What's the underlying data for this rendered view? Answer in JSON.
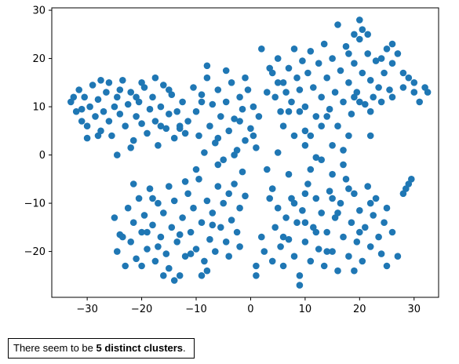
{
  "chart_data": {
    "type": "scatter",
    "title": "",
    "xlabel": "",
    "ylabel": "",
    "xlim": [
      -36.5,
      34.5
    ],
    "ylim": [
      -29.5,
      30.5
    ],
    "xticks": [
      -30,
      -20,
      -10,
      0,
      10,
      20,
      30
    ],
    "yticks": [
      -20,
      -10,
      0,
      10,
      20,
      30
    ],
    "grid": false,
    "legend": "none",
    "marker_color": "#1f77b4",
    "clusters_shown": 5,
    "points": [
      [
        -33,
        11
      ],
      [
        -32,
        9
      ],
      [
        -31.5,
        13.5
      ],
      [
        -31,
        7
      ],
      [
        -30.5,
        12
      ],
      [
        -30,
        6
      ],
      [
        -29.5,
        10
      ],
      [
        -29,
        14.5
      ],
      [
        -28.5,
        8
      ],
      [
        -28,
        11.5
      ],
      [
        -27.5,
        5
      ],
      [
        -27,
        9
      ],
      [
        -26.5,
        13
      ],
      [
        -26,
        7
      ],
      [
        -25.5,
        4
      ],
      [
        -25,
        10
      ],
      [
        -24.5,
        12
      ],
      [
        -24,
        8.5
      ],
      [
        -23.5,
        15.5
      ],
      [
        -23,
        6
      ],
      [
        -22.5,
        10.5
      ],
      [
        -22,
        13
      ],
      [
        -21.5,
        3
      ],
      [
        -21,
        8
      ],
      [
        -20.5,
        11
      ],
      [
        -20,
        6.5
      ],
      [
        -19.5,
        14
      ],
      [
        -19,
        4.5
      ],
      [
        -18.5,
        9.5
      ],
      [
        -18,
        12
      ],
      [
        -17.5,
        7
      ],
      [
        -17,
        2
      ],
      [
        -16.5,
        10
      ],
      [
        -16,
        14.5
      ],
      [
        -15.5,
        5.5
      ],
      [
        -15,
        8.5
      ],
      [
        -14.5,
        12.5
      ],
      [
        -14,
        3.5
      ],
      [
        -13.5,
        9
      ],
      [
        -13,
        6
      ],
      [
        -12.5,
        11
      ],
      [
        -12,
        4.5
      ],
      [
        -30,
        3.5
      ],
      [
        -28,
        4
      ],
      [
        -32.5,
        12
      ],
      [
        -26,
        15
      ],
      [
        -24.5,
        0
      ],
      [
        -22,
        1.5
      ],
      [
        -20,
        15
      ],
      [
        -17.5,
        16
      ],
      [
        -15,
        13.5
      ],
      [
        -13,
        5.5
      ],
      [
        -11.5,
        7
      ],
      [
        -31,
        9.5
      ],
      [
        -27.5,
        15.5
      ],
      [
        -21,
        12
      ],
      [
        -16.5,
        6
      ],
      [
        -24,
        13.5
      ],
      [
        -10.5,
        14
      ],
      [
        -10,
        9
      ],
      [
        -9.5,
        4
      ],
      [
        -9,
        12.5
      ],
      [
        -8.5,
        0.5
      ],
      [
        -8,
        16
      ],
      [
        -7.5,
        6
      ],
      [
        -7,
        10.5
      ],
      [
        -6.5,
        2.5
      ],
      [
        -6,
        13.5
      ],
      [
        -5.5,
        8
      ],
      [
        -5,
        -1
      ],
      [
        -4.5,
        11
      ],
      [
        -4,
        5
      ],
      [
        -3.5,
        15
      ],
      [
        -3,
        7.5
      ],
      [
        -2.5,
        1
      ],
      [
        -2,
        12
      ],
      [
        -1.5,
        9.5
      ],
      [
        -1,
        3
      ],
      [
        -0.5,
        13.5
      ],
      [
        0,
        5.5
      ],
      [
        0.5,
        10
      ],
      [
        1,
        1.5
      ],
      [
        1.5,
        8
      ],
      [
        2,
        22
      ],
      [
        -8,
        18.5
      ],
      [
        -6,
        3.5
      ],
      [
        -3,
        0
      ],
      [
        -1,
        16
      ],
      [
        0.5,
        4
      ],
      [
        -9,
        11
      ],
      [
        -4.5,
        17.5
      ],
      [
        -2,
        7
      ],
      [
        -25,
        -13
      ],
      [
        -24.5,
        -20
      ],
      [
        -24,
        -16.5
      ],
      [
        -23,
        -23
      ],
      [
        -22.5,
        -11
      ],
      [
        -22,
        -18
      ],
      [
        -21.5,
        -14
      ],
      [
        -21,
        -21.5
      ],
      [
        -20.5,
        -9
      ],
      [
        -20,
        -16
      ],
      [
        -19.5,
        -12.5
      ],
      [
        -19,
        -19.5
      ],
      [
        -18.5,
        -7
      ],
      [
        -18,
        -14.5
      ],
      [
        -17.5,
        -22
      ],
      [
        -17,
        -10
      ],
      [
        -16.5,
        -17
      ],
      [
        -16,
        -12
      ],
      [
        -15.5,
        -20.5
      ],
      [
        -15,
        -6.5
      ],
      [
        -14.5,
        -15
      ],
      [
        -14,
        -9.5
      ],
      [
        -13.5,
        -18
      ],
      [
        -13,
        -25
      ],
      [
        -12.5,
        -13
      ],
      [
        -12,
        -21
      ],
      [
        -11.5,
        -8
      ],
      [
        -11,
        -16
      ],
      [
        -10.5,
        -11
      ],
      [
        -10,
        -19.5
      ],
      [
        -9.5,
        -5
      ],
      [
        -9,
        -14
      ],
      [
        -8.5,
        -22
      ],
      [
        -8,
        -9.5
      ],
      [
        -7.5,
        -17.5
      ],
      [
        -7,
        -12
      ],
      [
        -6.5,
        -20
      ],
      [
        -6,
        -6.5
      ],
      [
        -5.5,
        -15
      ],
      [
        -5,
        -10
      ],
      [
        -4.5,
        -18
      ],
      [
        -4,
        -8
      ],
      [
        -3.5,
        -13.5
      ],
      [
        -3,
        -6
      ],
      [
        -2.5,
        -16
      ],
      [
        -2,
        -11
      ],
      [
        -1.5,
        -3.5
      ],
      [
        -1,
        -8.5
      ],
      [
        -23.5,
        -17
      ],
      [
        -20,
        -23
      ],
      [
        -17,
        -19
      ],
      [
        -14,
        -26
      ],
      [
        -12,
        -5.5
      ],
      [
        -10,
        -3
      ],
      [
        -8,
        -24
      ],
      [
        -6,
        -2
      ],
      [
        -18,
        -9
      ],
      [
        -15,
        -23.5
      ],
      [
        -11,
        -20.5
      ],
      [
        -19,
        -16
      ],
      [
        -13,
        -16.5
      ],
      [
        -7,
        -14.5
      ],
      [
        -16,
        -25
      ],
      [
        -9,
        -25
      ],
      [
        -21.5,
        -6
      ],
      [
        -4,
        -21
      ],
      [
        -2,
        -19
      ],
      [
        4,
        -7
      ],
      [
        4.5,
        -15
      ],
      [
        5,
        -11
      ],
      [
        5.5,
        -19
      ],
      [
        6,
        -23
      ],
      [
        6.5,
        -13
      ],
      [
        7,
        -17.5
      ],
      [
        7.5,
        -9
      ],
      [
        8,
        -21
      ],
      [
        8.5,
        -14
      ],
      [
        9,
        -25
      ],
      [
        9.5,
        -11.5
      ],
      [
        10,
        -18
      ],
      [
        10.5,
        -6
      ],
      [
        11,
        -22
      ],
      [
        11.5,
        -15
      ],
      [
        12,
        -9
      ],
      [
        12.5,
        -19.5
      ],
      [
        13,
        -12
      ],
      [
        13.5,
        -23
      ],
      [
        14,
        -16
      ],
      [
        14.5,
        -7.5
      ],
      [
        15,
        -20
      ],
      [
        15.5,
        -13
      ],
      [
        16,
        -24
      ],
      [
        16.5,
        -10
      ],
      [
        17,
        -17
      ],
      [
        17.5,
        -5
      ],
      [
        18,
        -21
      ],
      [
        18.5,
        -14
      ],
      [
        19,
        -8
      ],
      [
        19.5,
        -18
      ],
      [
        20,
        -11.5
      ],
      [
        20.5,
        -22
      ],
      [
        21,
        -15
      ],
      [
        21.5,
        -6.5
      ],
      [
        22,
        -19
      ],
      [
        22.5,
        -12.5
      ],
      [
        23,
        -9
      ],
      [
        23.5,
        -17
      ],
      [
        24,
        -20.5
      ],
      [
        24.5,
        -14
      ],
      [
        25,
        -11
      ],
      [
        26,
        -16
      ],
      [
        27,
        -21
      ],
      [
        28,
        -8
      ],
      [
        28.5,
        -7
      ],
      [
        29,
        -6
      ],
      [
        29.5,
        -5
      ],
      [
        1,
        -23
      ],
      [
        1,
        -25
      ],
      [
        2.5,
        -20
      ],
      [
        3,
        -3
      ],
      [
        5,
        0.5
      ],
      [
        7,
        -4
      ],
      [
        9,
        -27
      ],
      [
        11,
        -3
      ],
      [
        13,
        -1
      ],
      [
        15,
        -4
      ],
      [
        17,
        -2
      ],
      [
        3.5,
        -9
      ],
      [
        6,
        -17
      ],
      [
        8,
        -10
      ],
      [
        10,
        -14
      ],
      [
        12,
        -16
      ],
      [
        14,
        -20
      ],
      [
        16,
        -12
      ],
      [
        18,
        -7
      ],
      [
        20,
        -16
      ],
      [
        22,
        -10
      ],
      [
        2,
        -17
      ],
      [
        4,
        -22
      ],
      [
        19,
        -24
      ],
      [
        25,
        -23
      ],
      [
        10,
        -8
      ],
      [
        15,
        -9
      ],
      [
        4,
        17
      ],
      [
        4.5,
        12
      ],
      [
        5,
        20
      ],
      [
        5.5,
        9
      ],
      [
        6,
        15
      ],
      [
        6.5,
        13
      ],
      [
        7,
        18
      ],
      [
        7.5,
        11
      ],
      [
        8,
        22
      ],
      [
        8.5,
        16
      ],
      [
        9,
        13.5
      ],
      [
        9.5,
        19.5
      ],
      [
        10,
        10
      ],
      [
        10.5,
        17
      ],
      [
        11,
        21.5
      ],
      [
        11.5,
        14
      ],
      [
        12,
        8
      ],
      [
        12.5,
        19
      ],
      [
        13,
        12
      ],
      [
        13.5,
        23
      ],
      [
        14,
        16
      ],
      [
        14.5,
        9.5
      ],
      [
        15,
        20
      ],
      [
        15.5,
        13
      ],
      [
        16,
        27
      ],
      [
        16.5,
        17.5
      ],
      [
        17,
        11
      ],
      [
        17.5,
        22.5
      ],
      [
        18,
        15
      ],
      [
        18.5,
        8.5
      ],
      [
        19,
        19
      ],
      [
        19.5,
        13
      ],
      [
        20,
        24
      ],
      [
        20.5,
        17
      ],
      [
        21,
        10.5
      ],
      [
        21.5,
        21
      ],
      [
        22,
        15.5
      ],
      [
        22.5,
        12
      ],
      [
        23,
        19.5
      ],
      [
        23.5,
        14
      ],
      [
        24,
        11
      ],
      [
        24.5,
        17
      ],
      [
        25,
        22
      ],
      [
        25.5,
        13.5
      ],
      [
        26,
        19
      ],
      [
        27,
        21
      ],
      [
        28,
        14
      ],
      [
        29,
        16
      ],
      [
        30,
        15
      ],
      [
        31,
        11
      ],
      [
        32,
        14
      ],
      [
        32.5,
        13
      ],
      [
        20,
        28
      ],
      [
        19,
        25
      ],
      [
        21.5,
        25
      ],
      [
        20.5,
        26
      ],
      [
        24,
        20
      ],
      [
        26,
        23
      ],
      [
        28,
        17
      ],
      [
        30,
        13
      ],
      [
        3,
        13
      ],
      [
        3.5,
        18
      ],
      [
        5,
        15
      ],
      [
        7,
        9
      ],
      [
        9,
        9
      ],
      [
        10,
        5
      ],
      [
        11,
        4
      ],
      [
        13,
        6
      ],
      [
        15,
        2
      ],
      [
        17,
        1
      ],
      [
        14,
        8
      ],
      [
        16,
        6
      ],
      [
        18,
        4
      ],
      [
        22,
        4
      ],
      [
        6,
        6
      ],
      [
        8,
        4
      ],
      [
        12,
        -0.5
      ],
      [
        19,
        12
      ],
      [
        22,
        9
      ],
      [
        26,
        12
      ],
      [
        10,
        2
      ],
      [
        18,
        21
      ],
      [
        20,
        11
      ]
    ]
  },
  "caption": {
    "before": "There seem to be ",
    "bold": "5 distinct clusters",
    "after": "."
  }
}
